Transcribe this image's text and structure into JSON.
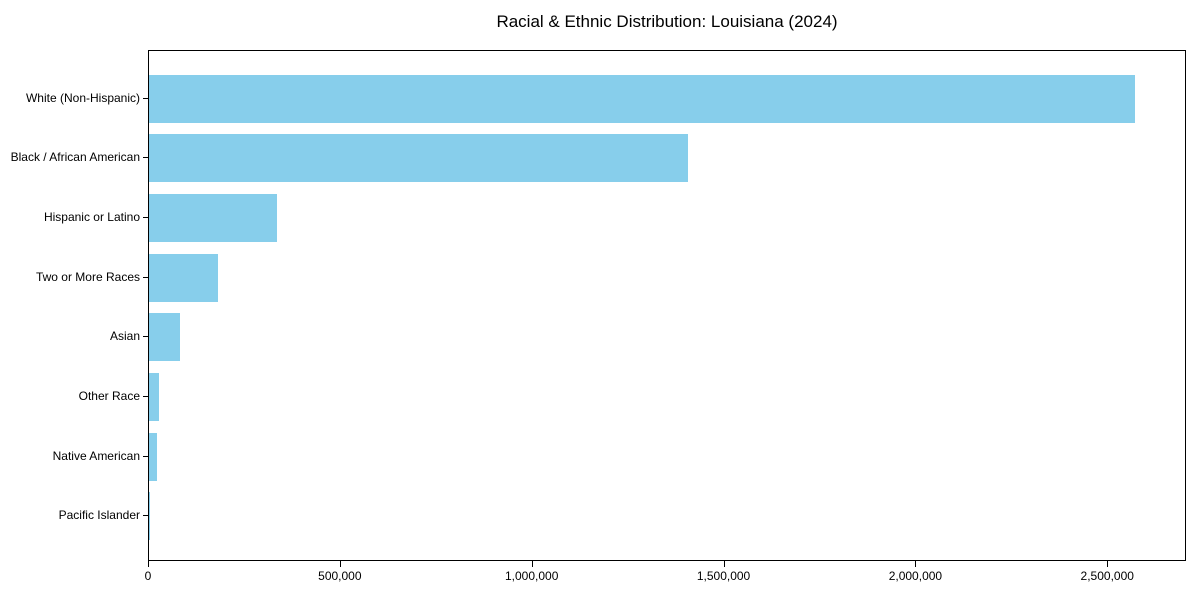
{
  "title": "Racial & Ethnic Distribution: Louisiana (2024)",
  "colors": {
    "bar": "#87CEEB",
    "frame": "#000000",
    "background": "#ffffff",
    "text": "#000000"
  },
  "chart_data": {
    "type": "bar",
    "orientation": "horizontal",
    "title": "Racial & Ethnic Distribution: Louisiana (2024)",
    "xlabel": "",
    "ylabel": "",
    "categories": [
      "White (Non-Hispanic)",
      "Black / African American",
      "Hispanic or Latino",
      "Two or More Races",
      "Asian",
      "Other Race",
      "Native American",
      "Pacific Islander"
    ],
    "values": [
      2570000,
      1405000,
      333000,
      180000,
      80000,
      25000,
      20000,
      2500
    ],
    "xlim": [
      0,
      2700000
    ],
    "xticks": [
      0,
      500000,
      1000000,
      1500000,
      2000000,
      2500000
    ],
    "xtick_labels": [
      "0",
      "500,000",
      "1,000,000",
      "1,500,000",
      "2,000,000",
      "2,500,000"
    ],
    "bar_color": "#87CEEB",
    "grid": false,
    "legend": null
  }
}
